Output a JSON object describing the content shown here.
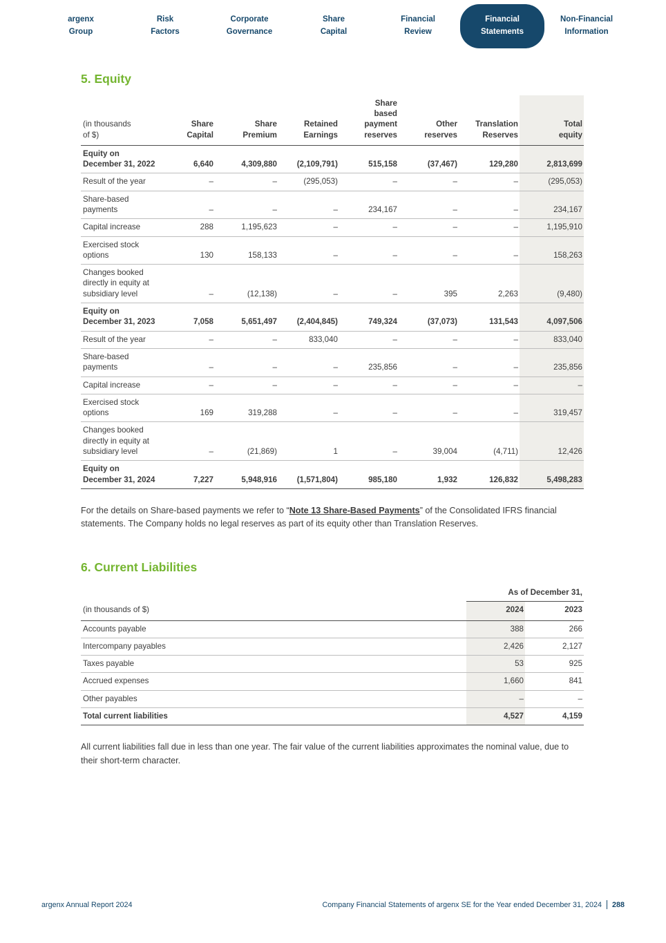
{
  "nav": {
    "items": [
      {
        "label": "argenx\nGroup",
        "active": false
      },
      {
        "label": "Risk\nFactors",
        "active": false
      },
      {
        "label": "Corporate\nGovernance",
        "active": false
      },
      {
        "label": "Share\nCapital",
        "active": false
      },
      {
        "label": "Financial\nReview",
        "active": false
      },
      {
        "label": "Financial\nStatements",
        "active": true
      },
      {
        "label": "Non-Financial\nInformation",
        "active": false
      }
    ]
  },
  "equity": {
    "heading": "5. Equity",
    "table": {
      "headers": [
        "(in thousands\nof $)",
        "Share\nCapital",
        "Share\nPremium",
        "Retained\nEarnings",
        "Share\nbased\npayment\nreserves",
        "Other\nreserves",
        "Translation\nReserves",
        "Total\nequity"
      ],
      "rows": [
        {
          "label": "Equity on December 31, 2022",
          "bold": true,
          "values": [
            "6,640",
            "4,309,880",
            "(2,109,791)",
            "515,158",
            "(37,467)",
            "129,280",
            "2,813,699"
          ]
        },
        {
          "label": "Result of the year",
          "bold": false,
          "values": [
            "–",
            "–",
            "(295,053)",
            "–",
            "–",
            "–",
            "(295,053)"
          ]
        },
        {
          "label": "Share-based payments",
          "bold": false,
          "values": [
            "–",
            "–",
            "–",
            "234,167",
            "–",
            "–",
            "234,167"
          ]
        },
        {
          "label": "Capital increase",
          "bold": false,
          "values": [
            "288",
            "1,195,623",
            "–",
            "–",
            "–",
            "–",
            "1,195,910"
          ]
        },
        {
          "label": "Exercised stock options",
          "bold": false,
          "values": [
            "130",
            "158,133",
            "–",
            "–",
            "–",
            "–",
            "158,263"
          ]
        },
        {
          "label": "Changes booked directly in equity at subsidiary level",
          "bold": false,
          "values": [
            "–",
            "(12,138)",
            "–",
            "–",
            "395",
            "2,263",
            "(9,480)"
          ]
        },
        {
          "label": "Equity on December 31, 2023",
          "bold": true,
          "values": [
            "7,058",
            "5,651,497",
            "(2,404,845)",
            "749,324",
            "(37,073)",
            "131,543",
            "4,097,506"
          ]
        },
        {
          "label": "Result of the year",
          "bold": false,
          "values": [
            "–",
            "–",
            "833,040",
            "–",
            "–",
            "–",
            "833,040"
          ]
        },
        {
          "label": "Share-based payments",
          "bold": false,
          "values": [
            "–",
            "–",
            "–",
            "235,856",
            "–",
            "–",
            "235,856"
          ]
        },
        {
          "label": "Capital increase",
          "bold": false,
          "values": [
            "–",
            "–",
            "–",
            "–",
            "–",
            "–",
            "–"
          ]
        },
        {
          "label": "Exercised stock options",
          "bold": false,
          "values": [
            "169",
            "319,288",
            "–",
            "–",
            "–",
            "–",
            "319,457"
          ]
        },
        {
          "label": "Changes booked directly in equity at subsidiary level",
          "bold": false,
          "values": [
            "–",
            "(21,869)",
            "1",
            "–",
            "39,004",
            "(4,711)",
            "12,426"
          ]
        },
        {
          "label": "Equity on December 31, 2024",
          "bold": true,
          "values": [
            "7,227",
            "5,948,916",
            "(1,571,804)",
            "985,180",
            "1,932",
            "126,832",
            "5,498,283"
          ]
        }
      ]
    },
    "note_before_link": "For the details on Share-based payments we refer to “",
    "note_link": "Note 13 Share-Based Payments",
    "note_after_link": "” of the Consolidated IFRS financial statements. The Company holds no legal reserves as part of its equity other than Translation Reserves."
  },
  "liabilities": {
    "heading": "6. Current Liabilities",
    "table": {
      "group_header": "As of December 31,",
      "headers": [
        "(in thousands of $)",
        "2024",
        "2023"
      ],
      "rows": [
        {
          "label": "Accounts payable",
          "bold": false,
          "values": [
            "388",
            "266"
          ]
        },
        {
          "label": "Intercompany payables",
          "bold": false,
          "values": [
            "2,426",
            "2,127"
          ]
        },
        {
          "label": "Taxes payable",
          "bold": false,
          "values": [
            "53",
            "925"
          ]
        },
        {
          "label": "Accrued expenses",
          "bold": false,
          "values": [
            "1,660",
            "841"
          ]
        },
        {
          "label": "Other payables",
          "bold": false,
          "values": [
            "–",
            "–"
          ]
        },
        {
          "label": "Total current liabilities",
          "bold": true,
          "values": [
            "4,527",
            "4,159"
          ]
        }
      ]
    },
    "note": "All current liabilities fall due in less than one year. The fair value of the current liabilities approximates the nominal value, due to their short-term character."
  },
  "footer": {
    "left": "argenx Annual Report 2024",
    "right": "Company Financial Statements of argenx SE for the Year ended December 31, 2024",
    "page": "288"
  },
  "colors": {
    "navy": "#16486b",
    "green": "#74b530",
    "highlight": "#efeeea"
  }
}
